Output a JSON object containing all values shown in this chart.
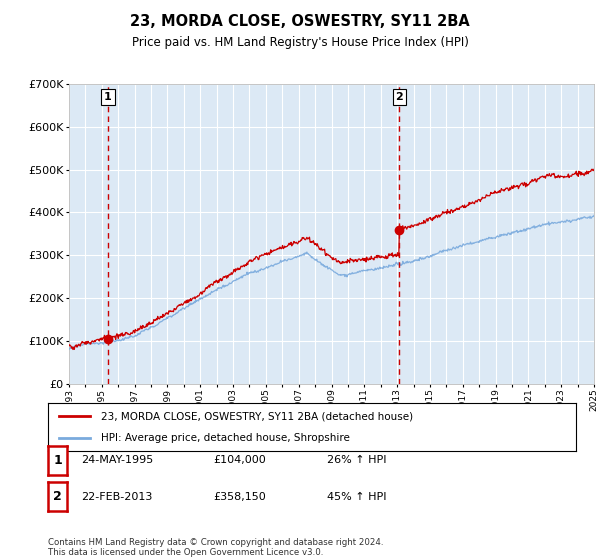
{
  "title": "23, MORDA CLOSE, OSWESTRY, SY11 2BA",
  "subtitle": "Price paid vs. HM Land Registry's House Price Index (HPI)",
  "ylim": [
    0,
    700000
  ],
  "yticks": [
    0,
    100000,
    200000,
    300000,
    400000,
    500000,
    600000,
    700000
  ],
  "ytick_labels": [
    "£0",
    "£100K",
    "£200K",
    "£300K",
    "£400K",
    "£500K",
    "£600K",
    "£700K"
  ],
  "sale1_year": 1995.38,
  "sale1_price": 104000,
  "sale1_label": "1",
  "sale2_year": 2013.13,
  "sale2_price": 358150,
  "sale2_label": "2",
  "hpi_color": "#7aaadd",
  "price_color": "#cc0000",
  "dashed_color": "#cc0000",
  "bg_color": "#dce9f5",
  "grid_color": "#ffffff",
  "plot_bg": "#dce9f5",
  "annotation_table": [
    {
      "num": "1",
      "date": "24-MAY-1995",
      "price": "£104,000",
      "hpi": "26% ↑ HPI"
    },
    {
      "num": "2",
      "date": "22-FEB-2013",
      "price": "£358,150",
      "hpi": "45% ↑ HPI"
    }
  ],
  "legend_line1": "23, MORDA CLOSE, OSWESTRY, SY11 2BA (detached house)",
  "legend_line2": "HPI: Average price, detached house, Shropshire",
  "footer": "Contains HM Land Registry data © Crown copyright and database right 2024.\nThis data is licensed under the Open Government Licence v3.0.",
  "xmin": 1993,
  "xmax": 2025
}
